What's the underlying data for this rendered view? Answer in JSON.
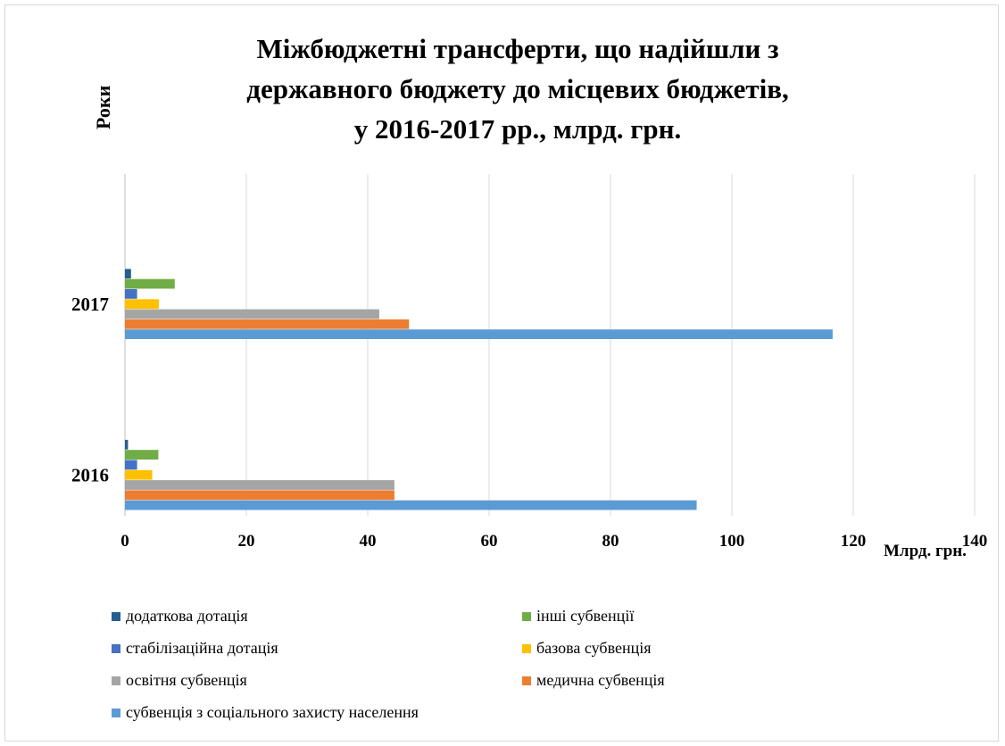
{
  "chart_data": {
    "type": "bar",
    "orientation": "horizontal",
    "title_lines": [
      "Міжбюджетні трансферти, що надійшли з",
      "державного бюджету до місцевих бюджетів,",
      "у 2016-2017 рр., млрд. грн."
    ],
    "xlabel": "Млрд. грн.",
    "ylabel": "Роки",
    "xlim": [
      0,
      140
    ],
    "xticks": [
      "0",
      "20",
      "40",
      "60",
      "80",
      "100",
      "120",
      "140"
    ],
    "categories": [
      "2017",
      "2016"
    ],
    "grid": true,
    "legend_position": "bottom",
    "series": [
      {
        "name": "додаткова дотація",
        "color": "#255e91",
        "values": [
          1.0,
          0.5
        ]
      },
      {
        "name": "інші субвенції",
        "color": "#70ad47",
        "values": [
          8.2,
          5.5
        ]
      },
      {
        "name": "стабілізаційна дотація",
        "color": "#4472c4",
        "values": [
          2.0,
          2.0
        ]
      },
      {
        "name": "базова субвенція",
        "color": "#ffc000",
        "values": [
          5.6,
          4.5
        ]
      },
      {
        "name": "освітня субвенція",
        "color": "#a5a5a5",
        "values": [
          41.9,
          44.4
        ]
      },
      {
        "name": "медична субвенція",
        "color": "#ed7d31",
        "values": [
          46.8,
          44.4
        ]
      },
      {
        "name": "субвенція з соціального захисту населення",
        "color": "#5b9bd5",
        "values": [
          116.6,
          94.2
        ]
      }
    ]
  }
}
